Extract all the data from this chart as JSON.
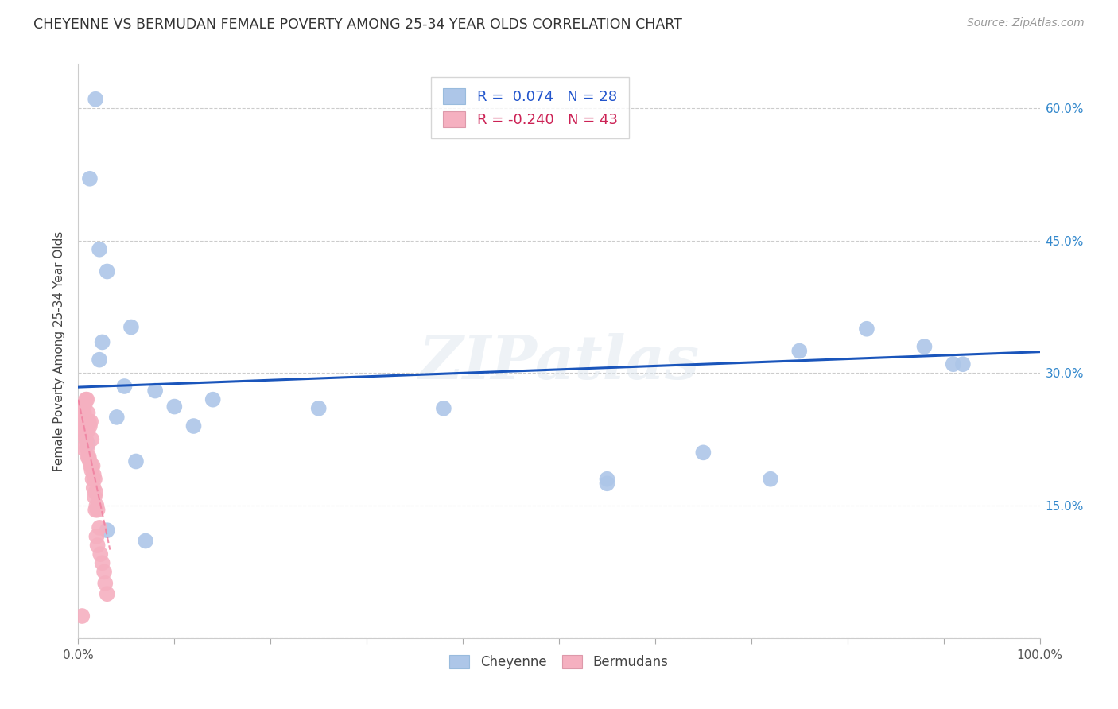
{
  "title": "CHEYENNE VS BERMUDAN FEMALE POVERTY AMONG 25-34 YEAR OLDS CORRELATION CHART",
  "source": "Source: ZipAtlas.com",
  "ylabel": "Female Poverty Among 25-34 Year Olds",
  "xlim": [
    0,
    1.0
  ],
  "ylim": [
    0,
    0.65
  ],
  "xticks": [
    0.0,
    0.1,
    0.2,
    0.3,
    0.4,
    0.5,
    0.6,
    0.7,
    0.8,
    0.9,
    1.0
  ],
  "xticklabels": [
    "0.0%",
    "",
    "",
    "",
    "",
    "",
    "",
    "",
    "",
    "",
    "100.0%"
  ],
  "yticks": [
    0.0,
    0.15,
    0.3,
    0.45,
    0.6
  ],
  "yticklabels_right": [
    "",
    "15.0%",
    "30.0%",
    "45.0%",
    "60.0%"
  ],
  "grid_color": "#cccccc",
  "background_color": "#ffffff",
  "cheyenne_color": "#adc6e8",
  "bermudans_color": "#f5b0c0",
  "cheyenne_line_color": "#1a55bb",
  "bermudans_line_color": "#f080a0",
  "legend_line1": "R =  0.074   N = 28",
  "legend_line2": "R = -0.240   N = 43",
  "watermark": "ZIPatlas",
  "cheyenne_x": [
    0.018,
    0.012,
    0.022,
    0.03,
    0.022,
    0.025,
    0.055,
    0.048,
    0.08,
    0.1,
    0.12,
    0.14,
    0.25,
    0.55,
    0.65,
    0.75,
    0.82,
    0.88,
    0.92,
    0.03,
    0.06,
    0.07,
    0.38,
    0.55,
    0.72,
    0.91,
    0.04,
    0.01
  ],
  "cheyenne_y": [
    0.61,
    0.52,
    0.44,
    0.415,
    0.315,
    0.335,
    0.352,
    0.285,
    0.28,
    0.262,
    0.24,
    0.27,
    0.26,
    0.18,
    0.21,
    0.325,
    0.35,
    0.33,
    0.31,
    0.122,
    0.2,
    0.11,
    0.26,
    0.175,
    0.18,
    0.31,
    0.25,
    0.22
  ],
  "bermudans_x": [
    0.004,
    0.004,
    0.005,
    0.005,
    0.005,
    0.006,
    0.006,
    0.007,
    0.007,
    0.008,
    0.008,
    0.009,
    0.009,
    0.01,
    0.01,
    0.01,
    0.011,
    0.011,
    0.012,
    0.012,
    0.013,
    0.013,
    0.014,
    0.014,
    0.015,
    0.015,
    0.016,
    0.016,
    0.017,
    0.017,
    0.018,
    0.018,
    0.019,
    0.019,
    0.02,
    0.02,
    0.022,
    0.023,
    0.025,
    0.027,
    0.028,
    0.03,
    0.004
  ],
  "bermudans_y": [
    0.25,
    0.24,
    0.26,
    0.23,
    0.215,
    0.255,
    0.24,
    0.265,
    0.235,
    0.27,
    0.225,
    0.27,
    0.215,
    0.255,
    0.235,
    0.205,
    0.245,
    0.205,
    0.24,
    0.2,
    0.245,
    0.195,
    0.225,
    0.19,
    0.195,
    0.18,
    0.185,
    0.17,
    0.18,
    0.16,
    0.165,
    0.145,
    0.15,
    0.115,
    0.145,
    0.105,
    0.125,
    0.095,
    0.085,
    0.075,
    0.062,
    0.05,
    0.025
  ],
  "cheyenne_trend_x": [
    0.0,
    1.0
  ],
  "cheyenne_trend_y": [
    0.284,
    0.324
  ],
  "bermudans_trend_x": [
    0.0,
    0.033
  ],
  "bermudans_trend_y": [
    0.27,
    0.1
  ]
}
